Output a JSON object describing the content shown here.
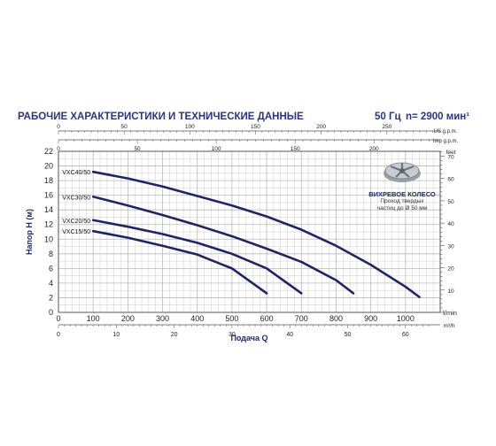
{
  "header": {
    "title": "РАБОЧИЕ ХАРАКТЕРИСТИКИ И ТЕХНИЧЕСКИЕ ДАННЫЕ",
    "frequency": "50 Гц",
    "speed": "n= 2900 мин¹"
  },
  "impeller": {
    "icon": "vortex-impeller-icon",
    "title": "ВИХРЕВОЕ КОЛЕСО",
    "note_line1": "Проход твердых",
    "note_line2": "частиц до Ø 50 мм"
  },
  "colors": {
    "curve": "#1e2560",
    "grid": "#b8b8b8",
    "header": "#2a3580",
    "text": "#1e2a6a"
  },
  "chart_data": {
    "type": "line",
    "ylabel": "Напор H (м)",
    "xlabel": "Подача Q",
    "x_unit": "l/min",
    "right_unit": "feet",
    "top_unit_us": "US g.p.m.",
    "top_unit_imp": "Imp g.p.m.",
    "bottom_unit_m3h": "m³/h",
    "xlim": [
      0,
      1100
    ],
    "ylim": [
      0,
      22
    ],
    "x_ticks": [
      "0",
      "100",
      "200",
      "300",
      "400",
      "500",
      "600",
      "700",
      "800",
      "900",
      "1000"
    ],
    "y_ticks": [
      "0",
      "2",
      "4",
      "6",
      "8",
      "10",
      "12",
      "14",
      "16",
      "18",
      "20",
      "22"
    ],
    "feet_ticks": [
      "10",
      "20",
      "30",
      "40",
      "50",
      "60",
      "70"
    ],
    "us_gpm_ticks": [
      "0",
      "50",
      "100",
      "150",
      "200",
      "250"
    ],
    "imp_gpm_ticks": [
      "0",
      "50",
      "100",
      "150",
      "200"
    ],
    "m3h_ticks": [
      "0",
      "10",
      "20",
      "30",
      "40",
      "50",
      "60"
    ],
    "series": [
      {
        "name": "VXC40/50",
        "x": [
          100,
          200,
          300,
          400,
          500,
          600,
          700,
          800,
          900,
          1000,
          1040
        ],
        "y": [
          19.2,
          18.3,
          17.2,
          15.9,
          14.6,
          13.1,
          11.3,
          9.1,
          6.5,
          3.5,
          2.1
        ]
      },
      {
        "name": "VXC30/50",
        "x": [
          100,
          200,
          300,
          400,
          500,
          600,
          700,
          800,
          850
        ],
        "y": [
          15.8,
          14.6,
          13.3,
          11.9,
          10.4,
          8.7,
          6.9,
          4.4,
          2.6
        ]
      },
      {
        "name": "VXC20/50",
        "x": [
          100,
          200,
          300,
          400,
          500,
          600,
          700
        ],
        "y": [
          12.6,
          11.7,
          10.7,
          9.5,
          8.0,
          6.0,
          2.6
        ]
      },
      {
        "name": "VXC15/50",
        "x": [
          100,
          200,
          300,
          400,
          500,
          600
        ],
        "y": [
          11.1,
          10.2,
          9.1,
          7.9,
          6.0,
          2.6
        ]
      }
    ]
  }
}
